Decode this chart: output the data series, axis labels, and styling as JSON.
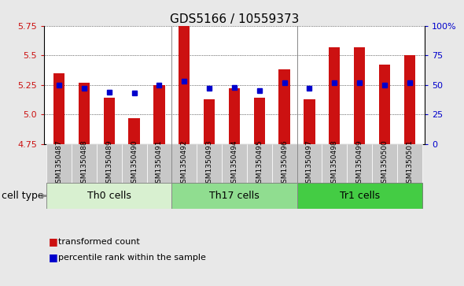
{
  "title": "GDS5166 / 10559373",
  "samples": [
    "GSM1350487",
    "GSM1350488",
    "GSM1350489",
    "GSM1350490",
    "GSM1350491",
    "GSM1350492",
    "GSM1350493",
    "GSM1350494",
    "GSM1350495",
    "GSM1350496",
    "GSM1350497",
    "GSM1350498",
    "GSM1350499",
    "GSM1350500",
    "GSM1350501"
  ],
  "transformed_counts": [
    5.35,
    5.27,
    5.14,
    4.97,
    5.25,
    5.75,
    5.13,
    5.22,
    5.14,
    5.38,
    5.13,
    5.57,
    5.57,
    5.42,
    5.5
  ],
  "percentile_ranks": [
    50,
    47,
    44,
    43,
    50,
    53,
    47,
    48,
    45,
    52,
    47,
    52,
    52,
    50,
    52
  ],
  "cell_types": [
    {
      "label": "Th0 cells",
      "start": 0,
      "end": 4,
      "color": "#d8f0d0"
    },
    {
      "label": "Th17 cells",
      "start": 5,
      "end": 9,
      "color": "#90dd90"
    },
    {
      "label": "Tr1 cells",
      "start": 10,
      "end": 14,
      "color": "#44cc44"
    }
  ],
  "ylim_left": [
    4.75,
    5.75
  ],
  "ylim_right": [
    0,
    100
  ],
  "yticks_left": [
    4.75,
    5.0,
    5.25,
    5.5,
    5.75
  ],
  "yticks_right": [
    0,
    25,
    50,
    75,
    100
  ],
  "ytick_labels_right": [
    "0",
    "25",
    "50",
    "75",
    "100%"
  ],
  "bar_color": "#cc1111",
  "dot_color": "#0000cc",
  "bar_baseline": 4.75,
  "bar_width": 0.45,
  "background_color": "#e8e8e8",
  "plot_bg_color": "#ffffff",
  "xlabel_bg_color": "#c8c8c8",
  "title_fontsize": 11,
  "tick_fontsize": 8,
  "xlabel_fontsize": 6.5,
  "legend_fontsize": 8,
  "cell_type_fontsize": 9,
  "group_borders": [
    4.5,
    9.5
  ]
}
